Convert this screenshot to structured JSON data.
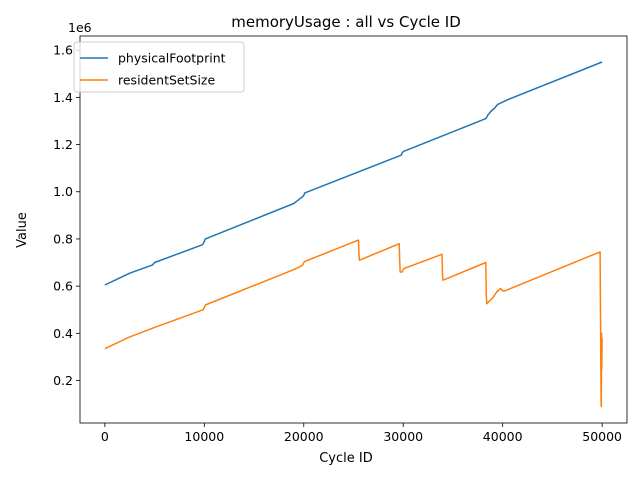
{
  "chart_data": {
    "type": "line",
    "title": "memoryUsage : all vs Cycle ID",
    "xlabel": "Cycle ID",
    "ylabel": "Value",
    "y_offset_label": "1e6",
    "xlim": [
      -2500,
      52500
    ],
    "ylim": [
      0.02,
      1.66
    ],
    "xticks": [
      0,
      10000,
      20000,
      30000,
      40000,
      50000
    ],
    "xtick_labels": [
      "0",
      "10000",
      "20000",
      "30000",
      "40000",
      "50000"
    ],
    "yticks": [
      0.2,
      0.4,
      0.6,
      0.8,
      1.0,
      1.2,
      1.4,
      1.6
    ],
    "ytick_labels": [
      "0.2",
      "0.4",
      "0.6",
      "0.8",
      "1.0",
      "1.2",
      "1.4",
      "1.6"
    ],
    "y_scale": 1000000,
    "grid": false,
    "legend": "top-left",
    "series": [
      {
        "name": "physicalFootprint",
        "color": "#1f77b4",
        "x": [
          0,
          2500,
          4800,
          5000,
          9800,
          9900,
          10100,
          19000,
          19300,
          19600,
          19900,
          20000,
          20100,
          29800,
          29900,
          30000,
          38300,
          38500,
          38800,
          39200,
          39500,
          40000,
          40500,
          50000
        ],
        "y": [
          0.605,
          0.655,
          0.69,
          0.7,
          0.775,
          0.78,
          0.8,
          0.95,
          0.96,
          0.97,
          0.98,
          0.985,
          0.995,
          1.155,
          1.165,
          1.17,
          1.31,
          1.325,
          1.34,
          1.355,
          1.37,
          1.38,
          1.39,
          1.55
        ]
      },
      {
        "name": "residentSetSize",
        "color": "#ff7f0e",
        "x": [
          0,
          2500,
          5000,
          9900,
          10000,
          10100,
          19000,
          19500,
          19900,
          20000,
          20100,
          25500,
          25550,
          25600,
          29600,
          29650,
          29700,
          29900,
          30000,
          30100,
          33900,
          33950,
          34000,
          38300,
          38350,
          38400,
          38500,
          39000,
          39400,
          39800,
          40000,
          40200,
          49800,
          49850,
          49900,
          49920,
          49950,
          49970,
          50000
        ],
        "y": [
          0.335,
          0.385,
          0.425,
          0.5,
          0.51,
          0.52,
          0.67,
          0.68,
          0.69,
          0.7,
          0.705,
          0.795,
          0.73,
          0.71,
          0.78,
          0.705,
          0.66,
          0.66,
          0.67,
          0.675,
          0.735,
          0.65,
          0.625,
          0.7,
          0.56,
          0.525,
          0.53,
          0.55,
          0.575,
          0.59,
          0.58,
          0.58,
          0.745,
          0.4,
          0.12,
          0.09,
          0.4,
          0.25,
          0.38
        ]
      }
    ]
  }
}
